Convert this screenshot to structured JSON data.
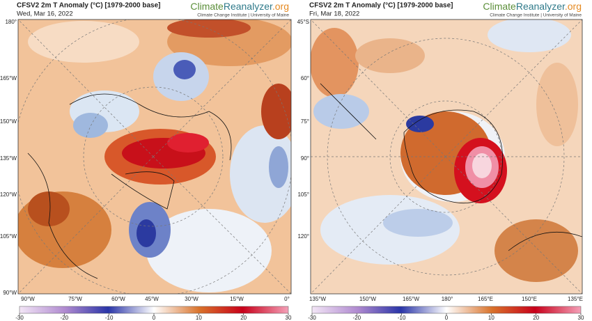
{
  "panels": [
    {
      "title": "CFSV2 2m T Anomaly (°C) [1979-2000 base]",
      "date": "Wed, Mar 16, 2022",
      "brand": [
        "Climate",
        "Reanalyzer",
        ".org"
      ],
      "brand_subtitle": "Climate Change Institute | University of Maine",
      "left_labels": [
        "180°",
        "165°W",
        "150°W",
        "135°W",
        "120°W",
        "105°W",
        "90°W"
      ],
      "bottom_labels": [
        "90°W",
        "75°W",
        "60°W",
        "45°W",
        "30°W",
        "15°W",
        "0°"
      ]
    },
    {
      "title": "CFSV2 2m T Anomaly (°C) [1979-2000 base]",
      "date": "Fri, Mar 18, 2022",
      "brand": [
        "Climate",
        "Reanalyzer",
        ".org"
      ],
      "brand_subtitle": "Climate Change Institute | University of Maine",
      "left_labels": [
        "45°S",
        "60°",
        "75°",
        "90°",
        "105°",
        "120°"
      ],
      "bottom_labels": [
        "135°W",
        "150°W",
        "165°W",
        "180°",
        "165°E",
        "150°E",
        "135°E"
      ]
    }
  ],
  "colorbar": {
    "range": [
      -30,
      30
    ],
    "ticks": [
      -30,
      -20,
      -10,
      0,
      10,
      20,
      30
    ]
  }
}
